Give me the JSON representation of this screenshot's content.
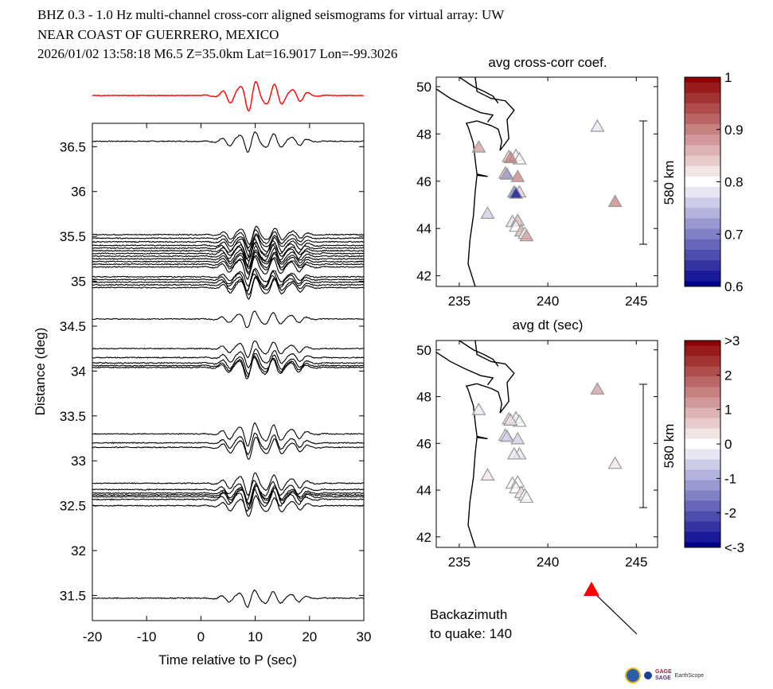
{
  "header": {
    "line1": "BHZ  0.3 - 1.0 Hz  multi-channel cross-corr aligned seismograms for virtual array: UW",
    "line2": "NEAR COAST OF GUERRERO, MEXICO",
    "line3": "2026/01/02  13:58:18  M6.5  Z=35.0km Lat=16.9017 Lon=-99.3026"
  },
  "chart_data": [
    {
      "type": "line",
      "title": "",
      "xlabel": "Time relative to P (sec)",
      "ylabel": "Distance (deg)",
      "xlim": [
        -20,
        30
      ],
      "ylim": [
        31.22,
        36.76
      ],
      "xticks": [
        "-20",
        "-10",
        "0",
        "10",
        "20",
        "30"
      ],
      "yticks": [
        "31.5",
        "32",
        "32.5",
        "33",
        "33.5",
        "34",
        "34.5",
        "35",
        "35.5",
        "36",
        "36.5"
      ],
      "stack_color": "#ff0000",
      "trace_color": "#000000",
      "trace_distances": [
        36.56,
        35.52,
        35.48,
        35.44,
        35.4,
        35.37,
        35.34,
        35.31,
        35.28,
        35.25,
        35.22,
        35.19,
        35.16,
        35.05,
        35.02,
        34.99,
        34.96,
        34.93,
        34.58,
        34.25,
        34.15,
        34.09,
        34.06,
        34.04,
        33.3,
        33.2,
        33.15,
        32.75,
        32.68,
        32.64,
        32.62,
        32.6,
        32.57,
        32.5,
        31.47
      ]
    },
    {
      "type": "scatter",
      "title": "avg cross-corr coef.",
      "xlim": [
        233.7,
        246.2
      ],
      "ylim": [
        41.55,
        50.4
      ],
      "xticks": [
        "235",
        "240",
        "245"
      ],
      "yticks": [
        "42",
        "44",
        "46",
        "48",
        "50"
      ],
      "colorbar": {
        "ticks": [
          "1",
          "0.9",
          "0.8",
          "0.7",
          "0.6"
        ],
        "range": [
          0.6,
          1.0
        ]
      },
      "scale_label": "580 km",
      "stations": [
        {
          "lon": 242.8,
          "lat": 48.28,
          "value": 0.78
        },
        {
          "lon": 236.1,
          "lat": 47.4,
          "value": 0.88
        },
        {
          "lon": 237.8,
          "lat": 47.0,
          "value": 0.84
        },
        {
          "lon": 238.2,
          "lat": 47.05,
          "value": 0.82
        },
        {
          "lon": 238.4,
          "lat": 46.9,
          "value": 0.79
        },
        {
          "lon": 237.9,
          "lat": 46.95,
          "value": 0.9
        },
        {
          "lon": 237.6,
          "lat": 46.3,
          "value": 0.86
        },
        {
          "lon": 237.7,
          "lat": 46.25,
          "value": 0.72
        },
        {
          "lon": 238.3,
          "lat": 46.15,
          "value": 0.9
        },
        {
          "lon": 238.4,
          "lat": 45.5,
          "value": 0.84
        },
        {
          "lon": 238.1,
          "lat": 45.5,
          "value": 0.7
        },
        {
          "lon": 238.2,
          "lat": 45.45,
          "value": 0.62
        },
        {
          "lon": 236.6,
          "lat": 44.6,
          "value": 0.76
        },
        {
          "lon": 243.8,
          "lat": 45.1,
          "value": 0.9
        },
        {
          "lon": 238.0,
          "lat": 44.25,
          "value": 0.78
        },
        {
          "lon": 238.3,
          "lat": 44.3,
          "value": 0.86
        },
        {
          "lon": 238.2,
          "lat": 44.05,
          "value": 0.79
        },
        {
          "lon": 238.5,
          "lat": 43.85,
          "value": 0.86
        },
        {
          "lon": 238.7,
          "lat": 43.75,
          "value": 0.8
        },
        {
          "lon": 238.8,
          "lat": 43.65,
          "value": 0.87
        }
      ]
    },
    {
      "type": "scatter",
      "title": "avg dt (sec)",
      "xlim": [
        233.7,
        246.2
      ],
      "ylim": [
        41.55,
        50.4
      ],
      "xticks": [
        "235",
        "240",
        "245"
      ],
      "yticks": [
        "42",
        "44",
        "46",
        "48",
        "50"
      ],
      "colorbar": {
        "ticks": [
          ">3",
          "2",
          "1",
          "0",
          "-1",
          "-2",
          "<-3"
        ],
        "range": [
          -3,
          3
        ]
      },
      "scale_label": "580 km",
      "stations": [
        {
          "lon": 242.8,
          "lat": 48.28,
          "value": 1.1
        },
        {
          "lon": 236.1,
          "lat": 47.4,
          "value": -0.3
        },
        {
          "lon": 237.8,
          "lat": 47.0,
          "value": 0.6
        },
        {
          "lon": 238.2,
          "lat": 47.05,
          "value": -0.2
        },
        {
          "lon": 238.4,
          "lat": 46.9,
          "value": 0.1
        },
        {
          "lon": 237.9,
          "lat": 46.95,
          "value": 0.4
        },
        {
          "lon": 237.6,
          "lat": 46.3,
          "value": -0.4
        },
        {
          "lon": 237.7,
          "lat": 46.25,
          "value": -0.6
        },
        {
          "lon": 238.3,
          "lat": 46.15,
          "value": -0.7
        },
        {
          "lon": 238.4,
          "lat": 45.5,
          "value": -0.2
        },
        {
          "lon": 238.1,
          "lat": 45.5,
          "value": -0.3
        },
        {
          "lon": 236.6,
          "lat": 44.6,
          "value": 0.2
        },
        {
          "lon": 243.8,
          "lat": 45.1,
          "value": 0.3
        },
        {
          "lon": 238.0,
          "lat": 44.25,
          "value": -0.1
        },
        {
          "lon": 238.3,
          "lat": 44.3,
          "value": 0.1
        },
        {
          "lon": 238.2,
          "lat": 44.05,
          "value": 0.0
        },
        {
          "lon": 238.5,
          "lat": 43.85,
          "value": 0.3
        },
        {
          "lon": 238.7,
          "lat": 43.75,
          "value": -0.1
        },
        {
          "lon": 238.8,
          "lat": 43.65,
          "value": 0.1
        }
      ]
    }
  ],
  "backazimuth": {
    "label1": "Backazimuth",
    "label2": "to quake:  140",
    "value": 140,
    "arrow_color": "#ff0000"
  },
  "logos": {
    "text": "NSF NASA GAGE SAGE EarthScope Consortium"
  }
}
